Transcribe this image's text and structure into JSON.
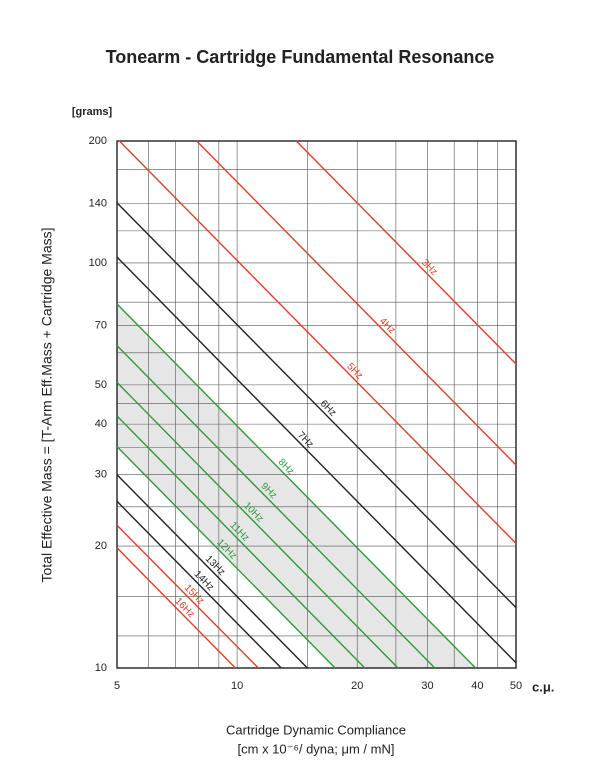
{
  "chart_data": {
    "type": "line",
    "title": "Tonearm - Cartridge Fundamental Resonance",
    "y_unit_label": "[grams]",
    "y_label": "Total Effective Mass = [T-Arm Eff.Mass + Cartridge Mass]",
    "x_unit_label": "c.μ.",
    "x_label": "Cartridge Dynamic Compliance",
    "x_sublabel": "[cm x 10⁻⁶/ dyna; μm / mN]",
    "log_x": true,
    "log_y": true,
    "grid": true,
    "xlim": [
      5,
      50
    ],
    "ylim": [
      10,
      200
    ],
    "xticks": [
      5,
      10,
      20,
      30,
      40,
      50
    ],
    "yticks": [
      10,
      20,
      30,
      40,
      50,
      70,
      100,
      140,
      200
    ],
    "minor_xticks": [
      6,
      7,
      8,
      9,
      15,
      25,
      35,
      45
    ],
    "minor_yticks": [
      12,
      15,
      25,
      35,
      45,
      60,
      80,
      120,
      170
    ],
    "shade_between": [
      5,
      9
    ],
    "shade_color": "#e6e6e6",
    "series": [
      {
        "name": "3Hz",
        "color": "#d9412b",
        "x": [
          14.07,
          50
        ],
        "values": [
          200,
          56.3
        ]
      },
      {
        "name": "4Hz",
        "color": "#d9412b",
        "x": [
          7.92,
          50
        ],
        "values": [
          200,
          31.7
        ]
      },
      {
        "name": "5Hz",
        "color": "#d9412b",
        "x": [
          5.07,
          50
        ],
        "values": [
          200,
          20.3
        ]
      },
      {
        "name": "6Hz",
        "color": "#222222",
        "x": [
          5,
          50
        ],
        "values": [
          140.7,
          14.1
        ]
      },
      {
        "name": "7Hz",
        "color": "#222222",
        "x": [
          5,
          50
        ],
        "values": [
          103.4,
          10.3
        ]
      },
      {
        "name": "8Hz",
        "color": "#2e9a3a",
        "x": [
          5,
          39.6
        ],
        "values": [
          79.2,
          10
        ]
      },
      {
        "name": "9Hz",
        "color": "#2e9a3a",
        "x": [
          5,
          31.3
        ],
        "values": [
          62.5,
          10
        ]
      },
      {
        "name": "10Hz",
        "color": "#2e9a3a",
        "x": [
          5,
          25.3
        ],
        "values": [
          50.7,
          10
        ]
      },
      {
        "name": "11Hz",
        "color": "#2e9a3a",
        "x": [
          5,
          20.9
        ],
        "values": [
          41.9,
          10
        ]
      },
      {
        "name": "12Hz",
        "color": "#2e9a3a",
        "x": [
          5,
          17.6
        ],
        "values": [
          35.2,
          10
        ]
      },
      {
        "name": "13Hz",
        "color": "#222222",
        "x": [
          5,
          15.0
        ],
        "values": [
          30.0,
          10
        ]
      },
      {
        "name": "14Hz",
        "color": "#222222",
        "x": [
          5,
          12.9
        ],
        "values": [
          25.8,
          10
        ]
      },
      {
        "name": "15Hz",
        "color": "#d9412b",
        "x": [
          5,
          11.3
        ],
        "values": [
          22.5,
          10
        ]
      },
      {
        "name": "16Hz",
        "color": "#d9412b",
        "x": [
          5,
          9.9
        ],
        "values": [
          19.8,
          10
        ]
      }
    ]
  }
}
